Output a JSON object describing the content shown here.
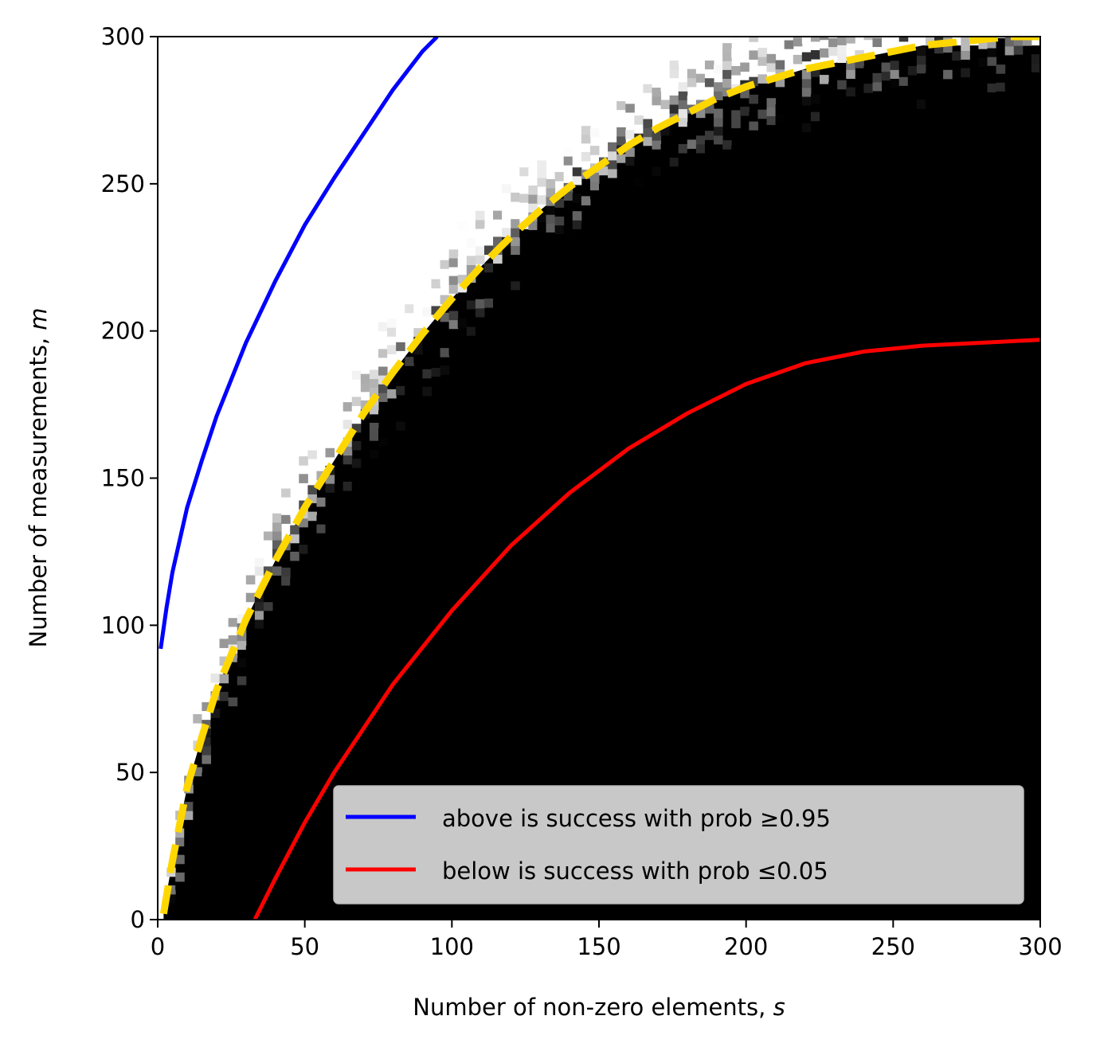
{
  "chart_data": {
    "type": "heatmap",
    "xlabel": "Number of non-zero elements, ",
    "xlabel_var": "s",
    "ylabel": "Number of measurements, ",
    "ylabel_var": "m",
    "xlim": [
      0,
      300
    ],
    "ylim": [
      0,
      300
    ],
    "xticks": [
      "0",
      "50",
      "100",
      "150",
      "200",
      "250",
      "300"
    ],
    "yticks": [
      "0",
      "50",
      "100",
      "150",
      "200",
      "250",
      "300"
    ],
    "grid": false,
    "legend_position": "lower-right",
    "heatmap": {
      "description_of_values": "success probability (white = 1, black = 0)",
      "transition_boundary": {
        "s": [
          2,
          5,
          10,
          15,
          20,
          30,
          40,
          50,
          60,
          70,
          80,
          90,
          100,
          110,
          120,
          130,
          140,
          150,
          160,
          170,
          180,
          190,
          200,
          210,
          220,
          230,
          240,
          250,
          260,
          270,
          280,
          290,
          300
        ],
        "m": [
          3,
          20,
          45,
          62,
          78,
          102,
          122,
          140,
          156,
          172,
          186,
          199,
          211,
          222,
          232,
          241,
          249,
          256,
          263,
          269,
          274,
          279,
          283,
          286,
          289,
          291,
          293,
          295,
          297,
          298,
          299,
          300,
          300
        ]
      }
    },
    "series": [
      {
        "name": "above is success with prob ",
        "symbol": "≥0.95",
        "color": "#0000ff",
        "style": "solid",
        "s": [
          1,
          3,
          5,
          10,
          15,
          20,
          30,
          40,
          50,
          60,
          70,
          80,
          90,
          95
        ],
        "m": [
          92,
          106,
          118,
          140,
          156,
          171,
          196,
          217,
          236,
          252,
          267,
          282,
          295,
          300
        ]
      },
      {
        "name": "below is success with prob ",
        "symbol": "≤0.05",
        "color": "#ff0000",
        "style": "solid",
        "s": [
          33,
          40,
          50,
          60,
          80,
          100,
          120,
          140,
          160,
          180,
          200,
          220,
          240,
          260,
          280,
          300
        ],
        "m": [
          0,
          14,
          33,
          50,
          80,
          105,
          127,
          145,
          160,
          172,
          182,
          189,
          193,
          195,
          196,
          197
        ]
      },
      {
        "name": "",
        "color": "#ffd700",
        "style": "dashed",
        "s": [
          2,
          5,
          10,
          15,
          20,
          30,
          40,
          50,
          60,
          70,
          80,
          90,
          100,
          110,
          120,
          130,
          140,
          150,
          160,
          170,
          180,
          190,
          200,
          210,
          220,
          230,
          240,
          250,
          260,
          270,
          280,
          290,
          300
        ],
        "m": [
          2,
          20,
          45,
          62,
          78,
          102,
          122,
          140,
          156,
          172,
          186,
          199,
          211,
          222,
          232,
          241,
          249,
          256,
          263,
          269,
          274,
          279,
          283,
          286,
          289,
          291,
          293,
          295,
          297,
          298,
          299,
          300,
          300
        ]
      }
    ]
  }
}
